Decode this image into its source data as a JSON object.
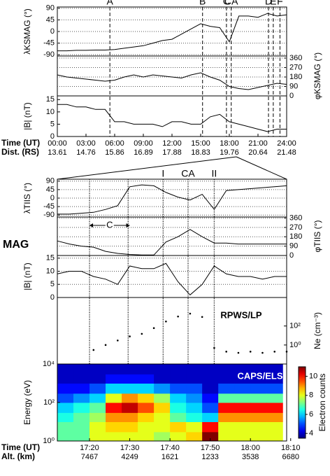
{
  "figure_label": "MAG",
  "chart_data": [
    {
      "type": "line",
      "ylabel": "λKSMAG (°)",
      "yside": "left",
      "grid": true,
      "color": "#000000",
      "xlim": [
        0,
        24
      ],
      "ylim": [
        -95,
        95
      ],
      "yticks": [
        90,
        45,
        0,
        -45,
        -90
      ],
      "x": [
        0,
        1,
        2,
        3,
        4,
        5,
        6,
        7,
        8,
        9,
        10,
        11,
        12,
        13,
        14,
        15,
        16,
        17,
        18,
        19,
        20,
        21,
        22,
        23,
        24
      ],
      "values": [
        -75,
        -75,
        -73,
        -73,
        -72,
        -72,
        -70,
        -65,
        -60,
        -55,
        -45,
        -35,
        -30,
        -10,
        10,
        30,
        20,
        15,
        -40,
        60,
        60,
        55,
        70,
        60,
        65
      ],
      "events": [
        {
          "label": "A",
          "x": 5.5
        },
        {
          "label": "B",
          "x": 15.2
        },
        {
          "label": "C",
          "x": 17.7
        },
        {
          "label": "CA",
          "x": 18.2
        },
        {
          "label": "D",
          "x": 22.1
        },
        {
          "label": "E",
          "x": 22.6
        },
        {
          "label": "F",
          "x": 23.3
        }
      ]
    },
    {
      "type": "line",
      "ylabel": "φKSMAG (°)",
      "yside": "right",
      "grid": true,
      "color": "#000000",
      "xlim": [
        0,
        24
      ],
      "ylim": [
        0,
        380
      ],
      "yticks": [
        360,
        270,
        180,
        90,
        0
      ],
      "x": [
        0,
        1,
        2,
        3,
        4,
        5,
        6,
        7,
        8,
        9,
        10,
        11,
        12,
        13,
        14,
        15,
        16,
        17,
        18,
        19,
        20,
        21,
        22,
        23,
        24
      ],
      "values": [
        200,
        180,
        170,
        160,
        150,
        140,
        150,
        180,
        200,
        180,
        200,
        190,
        180,
        170,
        200,
        220,
        180,
        150,
        90,
        70,
        60,
        80,
        100,
        120,
        110
      ]
    },
    {
      "type": "line",
      "ylabel": "|B| (nT)",
      "yside": "left",
      "grid": false,
      "color": "#000000",
      "xlim": [
        0,
        24
      ],
      "ylim": [
        0,
        16.5
      ],
      "yticks": [
        15,
        10,
        5,
        0
      ],
      "x": [
        0,
        1,
        2,
        3,
        4,
        5,
        6,
        7,
        8,
        9,
        10,
        11,
        12,
        13,
        14,
        15,
        16,
        17,
        18,
        19,
        20,
        21,
        22,
        23,
        24
      ],
      "values": [
        13,
        13,
        12,
        12,
        11,
        11,
        6,
        6,
        5,
        5,
        5,
        4,
        6,
        6,
        5,
        5,
        8,
        9,
        6,
        5,
        4,
        3,
        2,
        3,
        3
      ],
      "xlabel": "Time (UT)",
      "xlabel2": "Dist. (RS)",
      "xticks": [
        {
          "value": 0,
          "label": "00:00"
        },
        {
          "value": 3,
          "label": "03:00"
        },
        {
          "value": 6,
          "label": "06:00"
        },
        {
          "value": 9,
          "label": "09:00"
        },
        {
          "value": 12,
          "label": "12:00"
        },
        {
          "value": 15,
          "label": "15:00"
        },
        {
          "value": 18,
          "label": "18:00"
        },
        {
          "value": 21,
          "label": "21:00"
        },
        {
          "value": 24,
          "label": "24:00"
        }
      ],
      "secondary_labels": [
        13.61,
        14.76,
        15.86,
        16.89,
        17.88,
        18.83,
        19.76,
        20.64,
        21.48
      ]
    },
    {
      "type": "line",
      "ylabel": "λTIIS (°)",
      "yside": "left",
      "grid": true,
      "color": "#000000",
      "xlim": [
        1032,
        1089
      ],
      "ylim": [
        -100,
        100
      ],
      "yticks": [
        90,
        45,
        0,
        -45,
        -90
      ],
      "x": [
        1032,
        1035,
        1038,
        1041,
        1044,
        1047,
        1050,
        1053,
        1056,
        1059,
        1062,
        1065,
        1068,
        1071,
        1074,
        1077,
        1080,
        1083,
        1086,
        1089
      ],
      "values": [
        -85,
        -85,
        -80,
        -75,
        -60,
        -40,
        60,
        70,
        65,
        30,
        5,
        -10,
        20,
        -60,
        40,
        45,
        50,
        55,
        60,
        65
      ],
      "events": [
        {
          "label": null,
          "x": 1040
        },
        {
          "label": null,
          "x": 1049.6
        },
        {
          "label": "I",
          "x": 1058.3
        },
        {
          "label": "CA",
          "x": 1064.5
        },
        {
          "label": "II",
          "x": 1071
        }
      ]
    },
    {
      "type": "line",
      "ylabel": "φTIIS (°)",
      "yside": "right",
      "grid": true,
      "color": "#000000",
      "xlim": [
        1032,
        1089
      ],
      "ylim": [
        0,
        370
      ],
      "yticks": [
        360,
        270,
        180,
        90,
        0
      ],
      "x": [
        1032,
        1035,
        1038,
        1041,
        1044,
        1047,
        1050,
        1053,
        1056,
        1059,
        1062,
        1065,
        1068,
        1071,
        1074,
        1077,
        1080,
        1083,
        1086,
        1089
      ],
      "values": [
        140,
        110,
        90,
        80,
        40,
        20,
        10,
        5,
        5,
        130,
        180,
        250,
        180,
        120,
        120,
        110,
        110,
        110,
        110,
        110
      ],
      "annotation": {
        "text": "C",
        "x0": 1040,
        "x1": 1050
      }
    },
    {
      "type": "line",
      "ylabel": "|B| (nT)",
      "yside": "left",
      "grid": true,
      "color": "#000000",
      "xlim": [
        1032,
        1089
      ],
      "ylim": [
        0,
        16
      ],
      "yticks": [
        15,
        10,
        5,
        0
      ],
      "x": [
        1032,
        1035,
        1038,
        1041,
        1044,
        1047,
        1050,
        1053,
        1056,
        1059,
        1062,
        1065,
        1068,
        1071,
        1074,
        1077,
        1080,
        1083,
        1086,
        1089
      ],
      "values": [
        9,
        10,
        10,
        8,
        7,
        5,
        12,
        11,
        11,
        13,
        6,
        1,
        5,
        12,
        9,
        8,
        8,
        7,
        8,
        8
      ]
    },
    {
      "type": "scatter",
      "title": "RPWS/LP",
      "ylabel": "Ne (cm⁻³)",
      "yside": "right",
      "ylog": true,
      "color": "#000000",
      "xlim": [
        1032,
        1089
      ],
      "ylim": [
        0.01,
        100000
      ],
      "yticks": [
        {
          "value": 100,
          "label": "10²"
        },
        {
          "value": 1,
          "label": "10⁰"
        }
      ],
      "x": [
        1041,
        1044,
        1047,
        1050,
        1053,
        1056,
        1059,
        1062,
        1065,
        1068,
        1071,
        1074,
        1077,
        1080,
        1083,
        1086,
        1089
      ],
      "values": [
        0.3,
        1,
        3,
        8,
        15,
        60,
        300,
        1000,
        2000,
        900,
        0.5,
        0.2,
        0.15,
        0.2,
        0.15,
        0.2,
        0.2
      ]
    },
    {
      "type": "heatmap",
      "title": "CAPS/ELS",
      "ylabel": "Energy (eV)",
      "yside": "left",
      "ylog": true,
      "xlim": [
        1032,
        1089
      ],
      "ylim": [
        1,
        10000
      ],
      "yticks": [
        {
          "value": 10000,
          "label": "10⁴"
        },
        {
          "value": 100,
          "label": "10²"
        },
        {
          "value": 1,
          "label": "10⁰"
        }
      ],
      "x_edges": [
        1032,
        1036,
        1040,
        1044,
        1048,
        1052,
        1056,
        1060,
        1064,
        1068,
        1072,
        1076,
        1080,
        1084,
        1088
      ],
      "y_edges": [
        1,
        3,
        10,
        30,
        100,
        300,
        1000,
        3000,
        10000
      ],
      "z": [
        [
          7,
          7,
          6.5,
          6,
          5,
          4.5,
          4,
          4
        ],
        [
          7,
          7,
          7,
          6.5,
          5.5,
          4.5,
          4,
          4
        ],
        [
          8,
          8,
          7.5,
          7,
          6,
          5,
          4,
          4
        ],
        [
          8,
          8.5,
          9,
          10,
          8,
          6,
          4.5,
          4
        ],
        [
          8,
          8.5,
          9,
          10.5,
          9,
          6,
          4.5,
          4
        ],
        [
          8,
          8,
          8.5,
          9.5,
          8.5,
          6,
          4.5,
          4
        ],
        [
          7.5,
          8,
          8,
          8.5,
          7.5,
          5.5,
          4,
          4
        ],
        [
          8,
          8.5,
          7,
          6.5,
          6,
          5,
          4,
          4
        ],
        [
          8.5,
          8,
          6.5,
          6,
          5.5,
          5,
          4,
          4
        ],
        [
          11,
          10,
          6,
          5,
          4.5,
          4,
          4,
          4
        ],
        [
          8,
          8,
          9,
          10,
          7,
          5,
          4,
          4
        ],
        [
          8,
          8,
          9,
          10,
          7,
          5,
          4,
          4
        ],
        [
          8,
          8,
          9,
          10,
          7,
          5,
          4,
          4
        ],
        [
          8,
          8,
          9,
          10,
          7,
          5,
          4,
          4
        ]
      ],
      "zlim": [
        3.5,
        11
      ],
      "colorbar_ticks": [
        10,
        8,
        6,
        4
      ],
      "colorbar_label": "Electron counts",
      "xlabel": "Time (UT)",
      "xlabel2": "Alt. (km)",
      "xticks": [
        {
          "value": 1040,
          "label": "17:20"
        },
        {
          "value": 1050,
          "label": "17:30"
        },
        {
          "value": 1060,
          "label": "17:40"
        },
        {
          "value": 1070,
          "label": "17:50"
        },
        {
          "value": 1080,
          "label": "18:00"
        },
        {
          "value": 1090,
          "label": "18:10"
        }
      ],
      "secondary_labels": [
        7467,
        4249,
        1621,
        1233,
        3538,
        6680
      ]
    }
  ]
}
